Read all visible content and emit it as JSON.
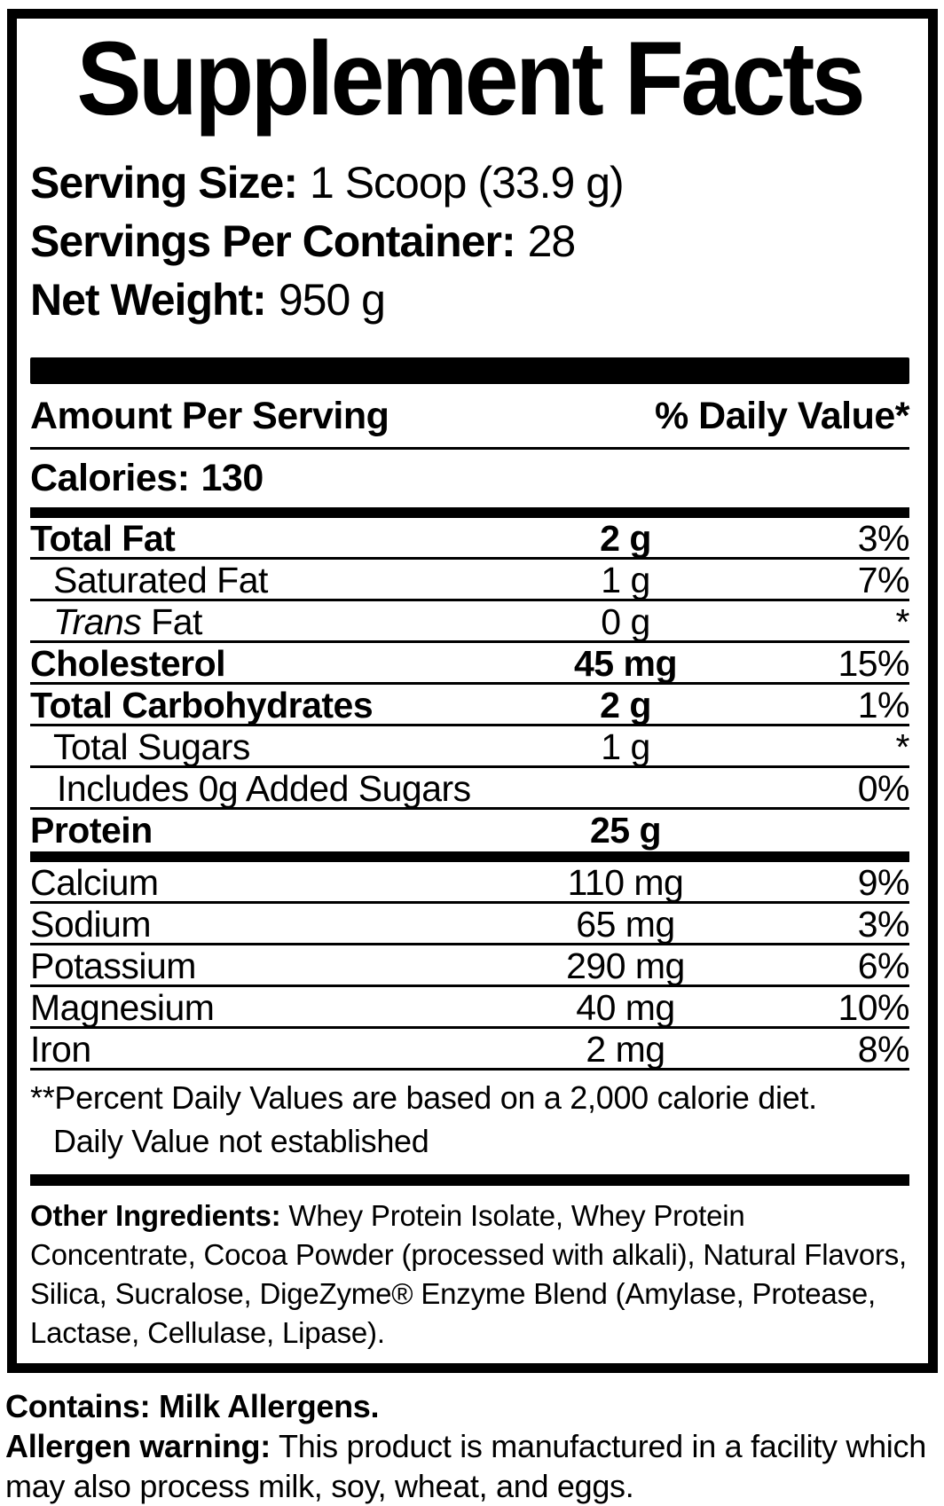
{
  "colors": {
    "text": "#000000",
    "background": "#ffffff"
  },
  "title": "Supplement Facts",
  "serving": {
    "rows": [
      {
        "label": "Serving Size:",
        "value": "1 Scoop (33.9 g)"
      },
      {
        "label": "Servings Per Container:",
        "value": "28"
      },
      {
        "label": "Net Weight:",
        "value": "950 g"
      }
    ]
  },
  "table": {
    "header": {
      "left": "Amount Per Serving",
      "right": "% Daily Value*"
    },
    "calories": {
      "label": "Calories:",
      "value": "130"
    },
    "rows": [
      {
        "name": "Total Fat",
        "amount": "2 g",
        "dv": "3%",
        "bold": true,
        "indent": 0
      },
      {
        "name": "Saturated Fat",
        "amount": "1 g",
        "dv": "7%",
        "bold": false,
        "indent": 1
      },
      {
        "name_italic": "Trans",
        "name": " Fat",
        "amount": "0 g",
        "dv": "*",
        "bold": false,
        "indent": 1
      },
      {
        "name": "Cholesterol",
        "amount": "45 mg",
        "dv": "15%",
        "bold": true,
        "indent": 0
      },
      {
        "name": "Total Carbohydrates",
        "amount": "2 g",
        "dv": "1%",
        "bold": true,
        "indent": 0
      },
      {
        "name": "Total Sugars",
        "amount": "1 g",
        "dv": "*",
        "bold": false,
        "indent": 1
      },
      {
        "name": "Includes 0g Added Sugars",
        "amount": "",
        "dv": "0%",
        "bold": false,
        "indent": 2
      },
      {
        "name": "Protein",
        "amount": "25 g",
        "dv": "",
        "bold": true,
        "indent": 0,
        "divider_after": "thick"
      },
      {
        "name": "Calcium",
        "amount": "110 mg",
        "dv": "9%",
        "bold": false,
        "indent": 0
      },
      {
        "name": "Sodium",
        "amount": "65 mg",
        "dv": "3%",
        "bold": false,
        "indent": 0
      },
      {
        "name": "Potassium",
        "amount": "290 mg",
        "dv": "6%",
        "bold": false,
        "indent": 0
      },
      {
        "name": "Magnesium",
        "amount": "40 mg",
        "dv": "10%",
        "bold": false,
        "indent": 0
      },
      {
        "name": "Iron",
        "amount": "2 mg",
        "dv": "8%",
        "bold": false,
        "indent": 0
      }
    ],
    "footnotes": [
      {
        "text": "**Percent Daily Values are based on a 2,000 calorie diet.",
        "indent": false
      },
      {
        "text": "Daily Value not established",
        "indent": true
      }
    ]
  },
  "other_ingredients": {
    "label": "Other Ingredients:",
    "text": "Whey Protein Isolate, Whey Protein Concentrate, Cocoa Powder (processed with alkali), Natural Flavors, Silica, Sucralose, DigeZyme® Enzyme Blend (Amylase, Protease, Lactase, Cellulase, Lipase)."
  },
  "allergen": {
    "contains": "Contains: Milk Allergens.",
    "warning_label": "Allergen warning:",
    "warning_text": "This product is manufactured in a facility which may also process milk, soy, wheat, and eggs."
  }
}
